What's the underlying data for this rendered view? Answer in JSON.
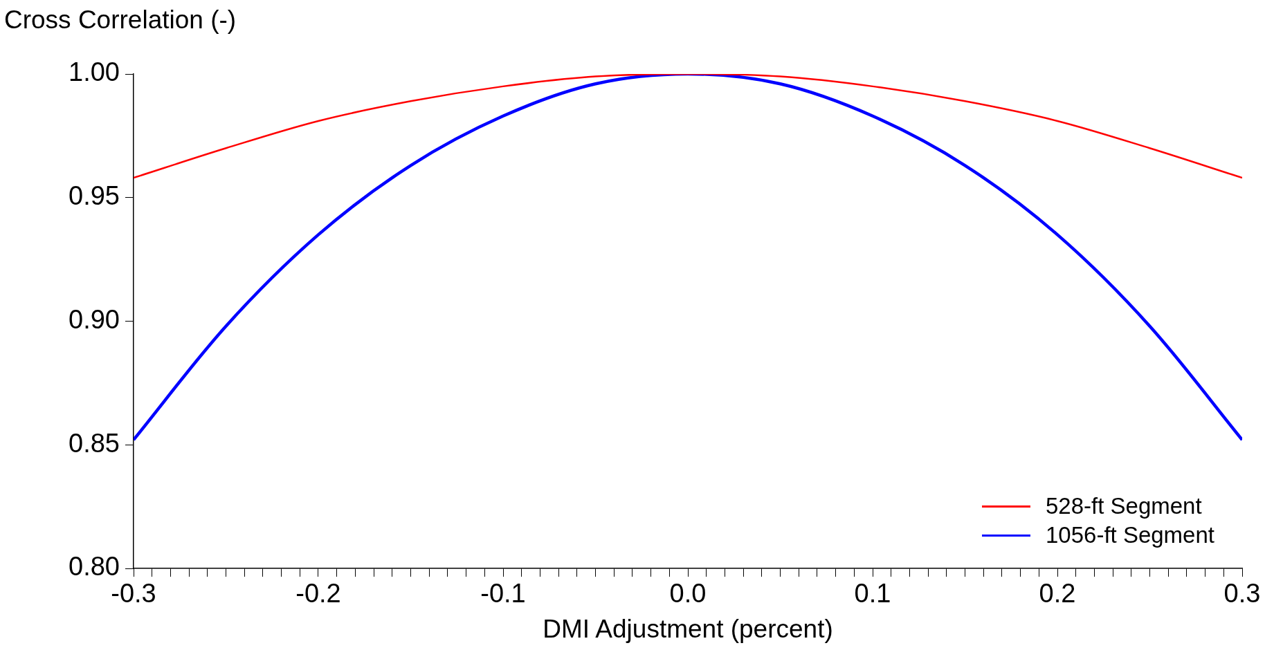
{
  "chart_data": {
    "type": "line",
    "xlabel": "DMI Adjustment (percent)",
    "ylabel": "Cross Correlation (-)",
    "x": [
      -0.3,
      -0.25,
      -0.2,
      -0.15,
      -0.1,
      -0.05,
      0,
      0.05,
      0.1,
      0.15,
      0.2,
      0.25,
      0.3
    ],
    "series": [
      {
        "name": "528-ft Segment",
        "color": "#ff0000",
        "values": [
          0.958,
          0.97,
          0.981,
          0.989,
          0.995,
          0.999,
          1.0,
          0.999,
          0.995,
          0.989,
          0.981,
          0.97,
          0.958
        ]
      },
      {
        "name": "1056-ft Segment",
        "color": "#0000ff",
        "values": [
          0.852,
          0.898,
          0.935,
          0.963,
          0.983,
          0.996,
          1.0,
          0.996,
          0.983,
          0.963,
          0.935,
          0.898,
          0.852
        ]
      }
    ],
    "xlim": [
      -0.3,
      0.3
    ],
    "xticks": [
      {
        "value": -0.3,
        "label": "-0.3"
      },
      {
        "value": -0.29,
        "label": null
      },
      {
        "value": -0.28,
        "label": null
      },
      {
        "value": -0.27,
        "label": null
      },
      {
        "value": -0.26,
        "label": null
      },
      {
        "value": -0.25,
        "label": null
      },
      {
        "value": -0.24,
        "label": null
      },
      {
        "value": -0.23,
        "label": null
      },
      {
        "value": -0.22,
        "label": null
      },
      {
        "value": -0.21,
        "label": null
      },
      {
        "value": -0.2,
        "label": "-0.2"
      },
      {
        "value": -0.19,
        "label": null
      },
      {
        "value": -0.18,
        "label": null
      },
      {
        "value": -0.17,
        "label": null
      },
      {
        "value": -0.16,
        "label": null
      },
      {
        "value": -0.15,
        "label": null
      },
      {
        "value": -0.14,
        "label": null
      },
      {
        "value": -0.13,
        "label": null
      },
      {
        "value": -0.12,
        "label": null
      },
      {
        "value": -0.11,
        "label": null
      },
      {
        "value": -0.1,
        "label": "-0.1"
      },
      {
        "value": -0.09,
        "label": null
      },
      {
        "value": -0.08,
        "label": null
      },
      {
        "value": -0.07,
        "label": null
      },
      {
        "value": -0.06,
        "label": null
      },
      {
        "value": -0.05,
        "label": null
      },
      {
        "value": -0.04,
        "label": null
      },
      {
        "value": -0.03,
        "label": null
      },
      {
        "value": -0.02,
        "label": null
      },
      {
        "value": -0.01,
        "label": null
      },
      {
        "value": 0,
        "label": "0.0"
      },
      {
        "value": 0.01,
        "label": null
      },
      {
        "value": 0.02,
        "label": null
      },
      {
        "value": 0.03,
        "label": null
      },
      {
        "value": 0.04,
        "label": null
      },
      {
        "value": 0.05,
        "label": null
      },
      {
        "value": 0.06,
        "label": null
      },
      {
        "value": 0.07,
        "label": null
      },
      {
        "value": 0.08,
        "label": null
      },
      {
        "value": 0.09,
        "label": null
      },
      {
        "value": 0.1,
        "label": "0.1"
      },
      {
        "value": 0.11,
        "label": null
      },
      {
        "value": 0.12,
        "label": null
      },
      {
        "value": 0.13,
        "label": null
      },
      {
        "value": 0.14,
        "label": null
      },
      {
        "value": 0.15,
        "label": null
      },
      {
        "value": 0.16,
        "label": null
      },
      {
        "value": 0.17,
        "label": null
      },
      {
        "value": 0.18,
        "label": null
      },
      {
        "value": 0.19,
        "label": null
      },
      {
        "value": 0.2,
        "label": "0.2"
      },
      {
        "value": 0.21,
        "label": null
      },
      {
        "value": 0.22,
        "label": null
      },
      {
        "value": 0.23,
        "label": null
      },
      {
        "value": 0.24,
        "label": null
      },
      {
        "value": 0.25,
        "label": null
      },
      {
        "value": 0.26,
        "label": null
      },
      {
        "value": 0.27,
        "label": null
      },
      {
        "value": 0.28,
        "label": null
      },
      {
        "value": 0.29,
        "label": null
      },
      {
        "value": 0.3,
        "label": "0.3"
      }
    ],
    "ylim": [
      0.8,
      1.0
    ],
    "yticks": [
      {
        "value": 0.8,
        "label": "0.80"
      },
      {
        "value": 0.85,
        "label": "0.85"
      },
      {
        "value": 0.9,
        "label": "0.90"
      },
      {
        "value": 0.95,
        "label": "0.95"
      },
      {
        "value": 1.0,
        "label": "1.00"
      }
    ],
    "grid": false,
    "legend": "bottom right",
    "marker": "none",
    "line_style": "solid"
  }
}
